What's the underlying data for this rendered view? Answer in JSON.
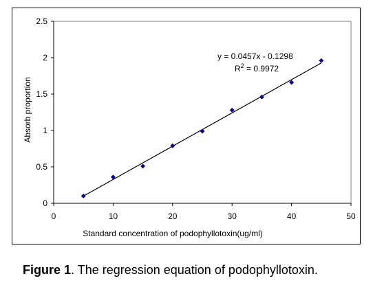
{
  "chart_data": {
    "type": "scatter",
    "xlabel": "Standard concentration of podophyllotoxin(ug/ml)",
    "ylabel": "Absorb proportion",
    "xlim": [
      0,
      50
    ],
    "ylim": [
      0,
      2.5
    ],
    "x_ticks": [
      0,
      10,
      20,
      30,
      40,
      50
    ],
    "y_ticks": [
      0,
      0.5,
      1,
      1.5,
      2,
      2.5
    ],
    "x_tick_labels": [
      "0",
      "10",
      "20",
      "30",
      "40",
      "50"
    ],
    "y_tick_labels": [
      "0",
      "0.5",
      "1",
      "1.5",
      "2",
      "2.5"
    ],
    "grid": false,
    "legend": "none",
    "marker": "diamond",
    "marker_color": "#000080",
    "trendline_color": "#000000",
    "series": [
      {
        "x": [
          5,
          10,
          15,
          20,
          25,
          30,
          35,
          40,
          45
        ],
        "y": [
          0.1,
          0.36,
          0.51,
          0.79,
          0.99,
          1.28,
          1.46,
          1.66,
          1.96
        ]
      }
    ],
    "trendline": {
      "slope": 0.0457,
      "intercept": -0.1298,
      "x_range": [
        5,
        45
      ]
    },
    "annotations": {
      "equation": "y = 0.0457x - 0.1298",
      "r2_label": "R",
      "r2_exponent": "2",
      "r2_value": " = 0.9972"
    }
  },
  "caption": {
    "bold": "Figure 1",
    "text": ". The regression equation of podophyllotoxin."
  }
}
